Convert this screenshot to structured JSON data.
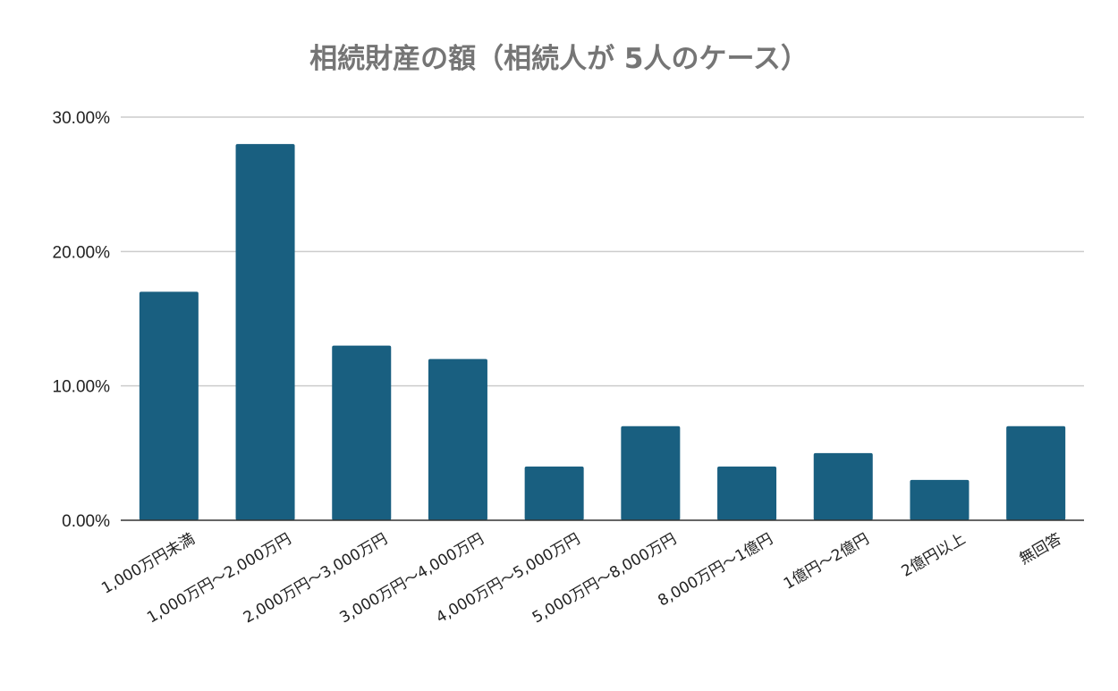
{
  "chart_data": {
    "type": "bar",
    "title": "相続財産の額（相続人が 5人のケース）",
    "xlabel": "",
    "ylabel": "",
    "categories": [
      "1,000万円未満",
      "1,000万円～2,000万円",
      "2,000万円～3,000万円",
      "3,000万円～4,000万円",
      "4,000万円～5,000万円",
      "5,000万円～8,000万円",
      "8,000万円～1億円",
      "1億円～2億円",
      "2億円以上",
      "無回答"
    ],
    "values": [
      17,
      28,
      13,
      12,
      4,
      7,
      4,
      5,
      3,
      7
    ],
    "y_ticks": [
      "0.00%",
      "10.00%",
      "20.00%",
      "30.00%"
    ],
    "y_tick_values": [
      0,
      10,
      20,
      30
    ],
    "ylim": [
      0,
      30
    ],
    "grid": true,
    "legend": "none",
    "bar_color": "#195f80",
    "title_color": "#757575"
  }
}
